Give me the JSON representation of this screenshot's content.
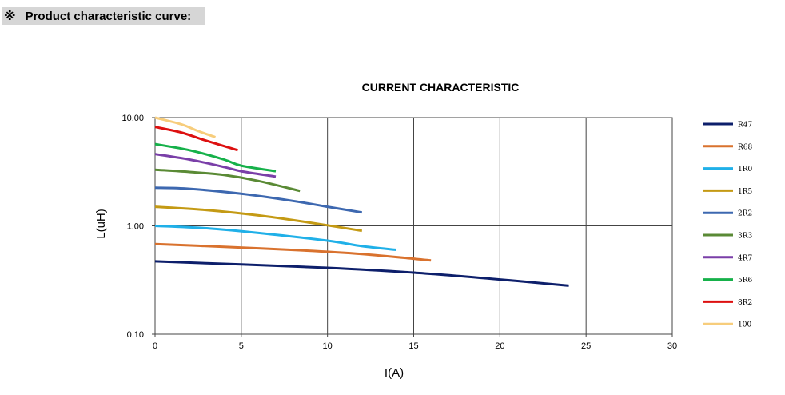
{
  "header": {
    "mark": "※",
    "title": "Product characteristic curve:"
  },
  "chart_data": {
    "type": "line",
    "title": "CURRENT CHARACTERISTIC",
    "xlabel": "I(A)",
    "ylabel": "L(uH)",
    "xlim": [
      0,
      30
    ],
    "ylim": [
      0.1,
      10
    ],
    "yscale": "log",
    "x_ticks": [
      0,
      5,
      10,
      15,
      20,
      25,
      30
    ],
    "x_tick_labels": [
      "0",
      "5",
      "10",
      "15",
      "20",
      "25",
      "30"
    ],
    "y_ticks": [
      0.1,
      1,
      10
    ],
    "y_tick_labels": [
      "0.10",
      "1.00",
      "10.00"
    ],
    "grid": true,
    "legend_position": "right",
    "series": [
      {
        "name": "R47",
        "color": "#0d1f6b",
        "points": [
          [
            0,
            0.47
          ],
          [
            5,
            0.44
          ],
          [
            10,
            0.41
          ],
          [
            15,
            0.37
          ],
          [
            20,
            0.32
          ],
          [
            24,
            0.28
          ]
        ]
      },
      {
        "name": "R68",
        "color": "#d9722e",
        "points": [
          [
            0,
            0.68
          ],
          [
            4,
            0.64
          ],
          [
            8,
            0.6
          ],
          [
            12,
            0.55
          ],
          [
            16,
            0.48
          ]
        ]
      },
      {
        "name": "1R0",
        "color": "#20b0e8",
        "points": [
          [
            0,
            1.0
          ],
          [
            3,
            0.95
          ],
          [
            6,
            0.86
          ],
          [
            10,
            0.73
          ],
          [
            12,
            0.65
          ],
          [
            14,
            0.6
          ]
        ]
      },
      {
        "name": "1R5",
        "color": "#c49a14",
        "points": [
          [
            0,
            1.5
          ],
          [
            3,
            1.4
          ],
          [
            6,
            1.25
          ],
          [
            9,
            1.07
          ],
          [
            12,
            0.9
          ]
        ]
      },
      {
        "name": "2R2",
        "color": "#3d68b0",
        "points": [
          [
            0,
            2.25
          ],
          [
            2,
            2.2
          ],
          [
            5,
            1.98
          ],
          [
            8,
            1.7
          ],
          [
            10,
            1.5
          ],
          [
            12,
            1.33
          ]
        ]
      },
      {
        "name": "3R3",
        "color": "#5a8a35",
        "points": [
          [
            0,
            3.3
          ],
          [
            2,
            3.15
          ],
          [
            4,
            2.95
          ],
          [
            6,
            2.6
          ],
          [
            8.4,
            2.1
          ]
        ]
      },
      {
        "name": "4R7",
        "color": "#7a3fa8",
        "points": [
          [
            0,
            4.6
          ],
          [
            2,
            4.1
          ],
          [
            4,
            3.5
          ],
          [
            5,
            3.2
          ],
          [
            7,
            2.85
          ]
        ]
      },
      {
        "name": "5R6",
        "color": "#16b14a",
        "points": [
          [
            0,
            5.7
          ],
          [
            2,
            5.0
          ],
          [
            4,
            4.1
          ],
          [
            5,
            3.6
          ],
          [
            7,
            3.2
          ]
        ]
      },
      {
        "name": "8R2",
        "color": "#dd1010",
        "points": [
          [
            0,
            8.2
          ],
          [
            1.5,
            7.3
          ],
          [
            3,
            6.1
          ],
          [
            4.8,
            5.0
          ]
        ]
      },
      {
        "name": "100",
        "color": "#f7cd7c",
        "points": [
          [
            0,
            10.0
          ],
          [
            1.5,
            8.7
          ],
          [
            2.5,
            7.5
          ],
          [
            3.5,
            6.6
          ]
        ]
      }
    ]
  }
}
